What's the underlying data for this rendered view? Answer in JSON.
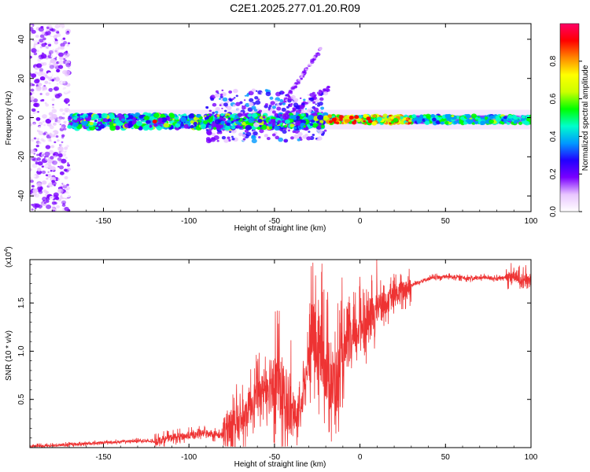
{
  "title": "C2E1.2025.277.01.20.R09",
  "chart_data": [
    {
      "type": "heatmap",
      "xlabel": "Height of straight line (km)",
      "ylabel": "Frequency (Hz)",
      "xlim": [
        -193,
        100
      ],
      "ylim": [
        -48,
        48
      ],
      "xticks": [
        -150,
        -100,
        -50,
        0,
        50,
        100
      ],
      "yticks": [
        -40,
        -20,
        0,
        20,
        40
      ],
      "colorbar": {
        "label": "Normalized spectral amplitude",
        "range": [
          0.0,
          1.0
        ],
        "ticks": [
          "0.0",
          "0.2",
          "0.4",
          "0.6",
          "0.8"
        ],
        "colors": [
          "#ffffff",
          "#e9c6ff",
          "#7a00ff",
          "#2200ff",
          "#0099ff",
          "#00ffcc",
          "#00ff00",
          "#ccff00",
          "#ffff00",
          "#ff8800",
          "#ff0000",
          "#ff0066"
        ]
      },
      "features": [
        {
          "name": "",
          "x": [
            -193,
            -170
          ],
          "y_center": 0,
          "y_spread": 48,
          "amplitude": 0.2
        },
        {
          "name": "",
          "x": [
            -170,
            -20
          ],
          "y_center": -2,
          "y_spread": 5,
          "amplitude": 0.45
        },
        {
          "name": "",
          "x": [
            -20,
            100
          ],
          "y_center": -1,
          "y_spread": 3,
          "amplitude": 0.6
        },
        {
          "name": "",
          "x": [
            -90,
            -20
          ],
          "y_center": 5,
          "y_spread": 12,
          "amplitude": 0.35
        },
        {
          "name": "",
          "x": [
            -45,
            -22
          ],
          "y_start": 18,
          "y_end": 36,
          "amplitude": 0.2
        }
      ]
    },
    {
      "type": "line",
      "xlabel": "Height of straight line (km)",
      "ylabel": "SNR (10 * v/v)",
      "yscale_label": "(x10",
      "yscale_exp": "4",
      "xlim": [
        -193,
        100
      ],
      "ylim": [
        0,
        1.95
      ],
      "xticks": [
        -150,
        -100,
        -50,
        0,
        50,
        100
      ],
      "yticks": [
        0.5,
        1.0,
        1.5
      ],
      "ytick_labels": [
        "0.5",
        "1.0",
        "1.5"
      ],
      "color": "#ee3333",
      "series": [
        {
          "name": "",
          "x": [
            -193,
            -180,
            -170,
            -160,
            -150,
            -140,
            -130,
            -120,
            -110,
            -100,
            -90,
            -80,
            -75,
            -70,
            -65,
            -60,
            -55,
            -50,
            -45,
            -40,
            -35,
            -30,
            -28,
            -25,
            -22,
            -20,
            -18,
            -15,
            -12,
            -10,
            -8,
            -5,
            -2,
            0,
            3,
            5,
            8,
            10,
            12,
            15,
            18,
            20,
            22,
            25,
            28,
            30,
            35,
            40,
            45,
            50,
            55,
            60,
            65,
            70,
            75,
            80,
            85,
            88,
            90,
            92,
            95,
            100
          ],
          "y": [
            0.01,
            0.02,
            0.03,
            0.04,
            0.05,
            0.06,
            0.07,
            0.06,
            0.1,
            0.12,
            0.15,
            0.12,
            0.25,
            0.22,
            0.4,
            0.55,
            0.6,
            0.7,
            0.5,
            0.35,
            0.3,
            0.9,
            1.2,
            0.95,
            1.0,
            0.8,
            0.7,
            0.6,
            0.7,
            0.9,
            1.0,
            1.05,
            1.15,
            1.25,
            1.28,
            1.3,
            1.35,
            1.45,
            1.5,
            1.48,
            1.52,
            1.55,
            1.58,
            1.62,
            1.65,
            1.68,
            1.72,
            1.75,
            1.76,
            1.77,
            1.77,
            1.76,
            1.75,
            1.76,
            1.76,
            1.75,
            1.76,
            1.77,
            1.78,
            1.74,
            1.75,
            1.73
          ]
        }
      ],
      "noise": [
        {
          "x": [
            -193,
            -120
          ],
          "amp": 0.02
        },
        {
          "x": [
            -120,
            -80
          ],
          "amp": 0.06
        },
        {
          "x": [
            -80,
            -55
          ],
          "amp": 0.28
        },
        {
          "x": [
            -55,
            -40
          ],
          "amp": 0.55
        },
        {
          "x": [
            -40,
            -30
          ],
          "amp": 0.25
        },
        {
          "x": [
            -30,
            -10
          ],
          "amp": 0.6
        },
        {
          "x": [
            -10,
            10
          ],
          "amp": 0.35
        },
        {
          "x": [
            10,
            30
          ],
          "amp": 0.18
        },
        {
          "x": [
            30,
            85
          ],
          "amp": 0.03
        },
        {
          "x": [
            85,
            100
          ],
          "amp": 0.1
        }
      ]
    }
  ]
}
